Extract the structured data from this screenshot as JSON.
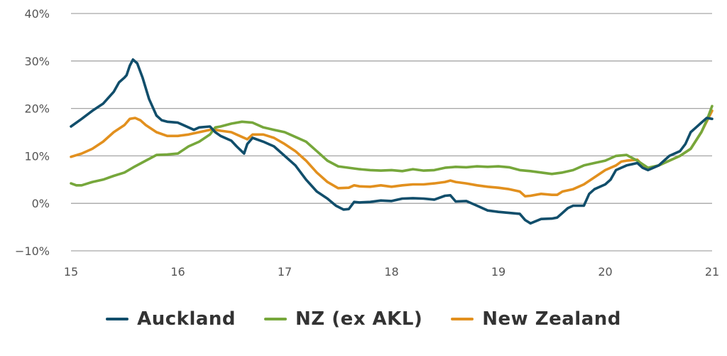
{
  "chart_data": {
    "type": "line",
    "title": "",
    "xlabel": "",
    "ylabel": "",
    "xlim": [
      15,
      21
    ],
    "ylim": [
      -10,
      40
    ],
    "x_ticks": [
      "15",
      "16",
      "17",
      "18",
      "19",
      "20",
      "21"
    ],
    "y_ticks": [
      "40%",
      "30%",
      "20%",
      "10%",
      "0%",
      "−10%"
    ],
    "y_tick_values": [
      40,
      30,
      20,
      10,
      0,
      -10
    ],
    "grid": "horizontal",
    "legend_position": "bottom-center",
    "series": [
      {
        "name": "Auckland",
        "color": "#114e6b",
        "points": [
          [
            15.0,
            16.2
          ],
          [
            15.1,
            17.8
          ],
          [
            15.2,
            19.5
          ],
          [
            15.3,
            21.0
          ],
          [
            15.4,
            23.5
          ],
          [
            15.45,
            25.5
          ],
          [
            15.5,
            26.5
          ],
          [
            15.52,
            27.0
          ],
          [
            15.55,
            29.0
          ],
          [
            15.58,
            30.3
          ],
          [
            15.62,
            29.5
          ],
          [
            15.67,
            26.5
          ],
          [
            15.73,
            22.0
          ],
          [
            15.8,
            18.5
          ],
          [
            15.85,
            17.5
          ],
          [
            15.9,
            17.2
          ],
          [
            16.0,
            17.0
          ],
          [
            16.1,
            16.0
          ],
          [
            16.15,
            15.5
          ],
          [
            16.2,
            16.0
          ],
          [
            16.3,
            16.2
          ],
          [
            16.35,
            15.0
          ],
          [
            16.4,
            14.2
          ],
          [
            16.5,
            13.2
          ],
          [
            16.55,
            12.0
          ],
          [
            16.62,
            10.5
          ],
          [
            16.65,
            12.5
          ],
          [
            16.7,
            13.8
          ],
          [
            16.8,
            13.0
          ],
          [
            16.9,
            12.0
          ],
          [
            17.0,
            10.0
          ],
          [
            17.1,
            8.0
          ],
          [
            17.2,
            5.0
          ],
          [
            17.3,
            2.5
          ],
          [
            17.4,
            1.0
          ],
          [
            17.48,
            -0.5
          ],
          [
            17.55,
            -1.3
          ],
          [
            17.6,
            -1.2
          ],
          [
            17.65,
            0.3
          ],
          [
            17.7,
            0.2
          ],
          [
            17.8,
            0.3
          ],
          [
            17.9,
            0.6
          ],
          [
            18.0,
            0.5
          ],
          [
            18.1,
            1.0
          ],
          [
            18.2,
            1.1
          ],
          [
            18.3,
            1.0
          ],
          [
            18.4,
            0.8
          ],
          [
            18.5,
            1.6
          ],
          [
            18.55,
            1.7
          ],
          [
            18.6,
            0.4
          ],
          [
            18.7,
            0.5
          ],
          [
            18.8,
            -0.5
          ],
          [
            18.9,
            -1.5
          ],
          [
            19.0,
            -1.8
          ],
          [
            19.1,
            -2.0
          ],
          [
            19.2,
            -2.2
          ],
          [
            19.25,
            -3.5
          ],
          [
            19.3,
            -4.2
          ],
          [
            19.4,
            -3.3
          ],
          [
            19.5,
            -3.2
          ],
          [
            19.55,
            -3.0
          ],
          [
            19.6,
            -2.0
          ],
          [
            19.65,
            -1.0
          ],
          [
            19.7,
            -0.5
          ],
          [
            19.8,
            -0.5
          ],
          [
            19.85,
            2.0
          ],
          [
            19.9,
            3.0
          ],
          [
            20.0,
            4.0
          ],
          [
            20.05,
            5.0
          ],
          [
            20.1,
            7.0
          ],
          [
            20.2,
            8.0
          ],
          [
            20.3,
            8.5
          ],
          [
            20.35,
            7.5
          ],
          [
            20.4,
            7.0
          ],
          [
            20.5,
            8.0
          ],
          [
            20.6,
            10.0
          ],
          [
            20.7,
            11.0
          ],
          [
            20.75,
            12.5
          ],
          [
            20.8,
            15.0
          ],
          [
            20.85,
            16.0
          ],
          [
            20.9,
            17.0
          ],
          [
            20.95,
            18.0
          ],
          [
            21.0,
            17.8
          ]
        ]
      },
      {
        "name": "NZ (ex AKL)",
        "color": "#76a73b",
        "points": [
          [
            15.0,
            4.2
          ],
          [
            15.05,
            3.8
          ],
          [
            15.1,
            3.8
          ],
          [
            15.2,
            4.5
          ],
          [
            15.3,
            5.0
          ],
          [
            15.4,
            5.8
          ],
          [
            15.5,
            6.5
          ],
          [
            15.6,
            7.8
          ],
          [
            15.7,
            9.0
          ],
          [
            15.8,
            10.2
          ],
          [
            15.9,
            10.3
          ],
          [
            16.0,
            10.5
          ],
          [
            16.1,
            12.0
          ],
          [
            16.2,
            13.0
          ],
          [
            16.3,
            14.5
          ],
          [
            16.35,
            16.0
          ],
          [
            16.4,
            16.2
          ],
          [
            16.5,
            16.8
          ],
          [
            16.6,
            17.2
          ],
          [
            16.7,
            17.0
          ],
          [
            16.8,
            16.0
          ],
          [
            16.9,
            15.5
          ],
          [
            17.0,
            15.0
          ],
          [
            17.1,
            14.0
          ],
          [
            17.2,
            13.0
          ],
          [
            17.3,
            11.0
          ],
          [
            17.4,
            9.0
          ],
          [
            17.5,
            7.8
          ],
          [
            17.6,
            7.5
          ],
          [
            17.7,
            7.2
          ],
          [
            17.8,
            7.0
          ],
          [
            17.9,
            6.9
          ],
          [
            18.0,
            7.0
          ],
          [
            18.1,
            6.8
          ],
          [
            18.2,
            7.2
          ],
          [
            18.3,
            6.9
          ],
          [
            18.4,
            7.0
          ],
          [
            18.5,
            7.5
          ],
          [
            18.6,
            7.7
          ],
          [
            18.7,
            7.6
          ],
          [
            18.8,
            7.8
          ],
          [
            18.9,
            7.7
          ],
          [
            19.0,
            7.8
          ],
          [
            19.1,
            7.6
          ],
          [
            19.2,
            7.0
          ],
          [
            19.3,
            6.8
          ],
          [
            19.4,
            6.5
          ],
          [
            19.5,
            6.2
          ],
          [
            19.6,
            6.5
          ],
          [
            19.7,
            7.0
          ],
          [
            19.8,
            8.0
          ],
          [
            19.9,
            8.5
          ],
          [
            20.0,
            9.0
          ],
          [
            20.1,
            10.0
          ],
          [
            20.2,
            10.2
          ],
          [
            20.3,
            9.0
          ],
          [
            20.4,
            7.5
          ],
          [
            20.5,
            8.0
          ],
          [
            20.6,
            9.0
          ],
          [
            20.7,
            10.0
          ],
          [
            20.8,
            11.5
          ],
          [
            20.9,
            15.0
          ],
          [
            20.95,
            17.5
          ],
          [
            21.0,
            20.5
          ]
        ]
      },
      {
        "name": "New Zealand",
        "color": "#e2901e",
        "points": [
          [
            15.0,
            9.8
          ],
          [
            15.1,
            10.5
          ],
          [
            15.2,
            11.5
          ],
          [
            15.3,
            13.0
          ],
          [
            15.4,
            15.0
          ],
          [
            15.5,
            16.5
          ],
          [
            15.55,
            17.8
          ],
          [
            15.6,
            18.0
          ],
          [
            15.65,
            17.5
          ],
          [
            15.7,
            16.5
          ],
          [
            15.8,
            15.0
          ],
          [
            15.9,
            14.2
          ],
          [
            16.0,
            14.2
          ],
          [
            16.1,
            14.5
          ],
          [
            16.2,
            15.0
          ],
          [
            16.3,
            15.5
          ],
          [
            16.35,
            15.5
          ],
          [
            16.4,
            15.3
          ],
          [
            16.5,
            15.0
          ],
          [
            16.6,
            14.0
          ],
          [
            16.65,
            13.5
          ],
          [
            16.7,
            14.5
          ],
          [
            16.8,
            14.5
          ],
          [
            16.9,
            13.8
          ],
          [
            17.0,
            12.5
          ],
          [
            17.1,
            11.0
          ],
          [
            17.2,
            9.0
          ],
          [
            17.3,
            6.5
          ],
          [
            17.4,
            4.5
          ],
          [
            17.5,
            3.2
          ],
          [
            17.6,
            3.3
          ],
          [
            17.65,
            3.8
          ],
          [
            17.7,
            3.6
          ],
          [
            17.8,
            3.5
          ],
          [
            17.9,
            3.8
          ],
          [
            18.0,
            3.5
          ],
          [
            18.1,
            3.8
          ],
          [
            18.2,
            4.0
          ],
          [
            18.3,
            4.0
          ],
          [
            18.4,
            4.2
          ],
          [
            18.5,
            4.5
          ],
          [
            18.55,
            4.8
          ],
          [
            18.6,
            4.5
          ],
          [
            18.7,
            4.2
          ],
          [
            18.8,
            3.8
          ],
          [
            18.9,
            3.5
          ],
          [
            19.0,
            3.3
          ],
          [
            19.1,
            3.0
          ],
          [
            19.2,
            2.5
          ],
          [
            19.25,
            1.5
          ],
          [
            19.3,
            1.6
          ],
          [
            19.4,
            2.0
          ],
          [
            19.5,
            1.8
          ],
          [
            19.55,
            1.8
          ],
          [
            19.6,
            2.5
          ],
          [
            19.7,
            3.0
          ],
          [
            19.8,
            4.0
          ],
          [
            19.9,
            5.5
          ],
          [
            20.0,
            7.0
          ],
          [
            20.1,
            8.0
          ],
          [
            20.15,
            8.8
          ],
          [
            20.2,
            9.0
          ],
          [
            20.3,
            9.2
          ],
          [
            20.35,
            8.0
          ],
          [
            20.4,
            7.3
          ],
          [
            20.5,
            8.0
          ],
          [
            20.6,
            9.0
          ],
          [
            20.7,
            10.0
          ],
          [
            20.8,
            11.5
          ],
          [
            20.9,
            15.0
          ],
          [
            21.0,
            19.5
          ]
        ]
      }
    ]
  }
}
